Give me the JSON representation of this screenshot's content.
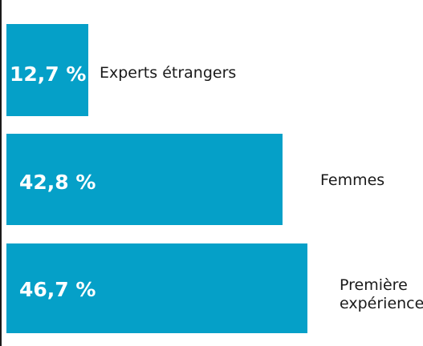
{
  "chart_data": {
    "type": "bar",
    "orientation": "horizontal",
    "categories": [
      "Experts étrangers",
      "Femmes",
      "Première expérience"
    ],
    "category_lines": [
      [
        "Experts étrangers"
      ],
      [
        "Femmes"
      ],
      [
        "Première",
        "expérience"
      ]
    ],
    "values": [
      12.7,
      42.8,
      46.7
    ],
    "value_labels": [
      "12,7 %",
      "42,8 %",
      "46,7 %"
    ],
    "unit": "%",
    "bar_color": "#05a0c8",
    "value_label_color": "#ffffff",
    "axis_color": "#1a1a1a",
    "xlim": [
      0,
      50
    ],
    "grid": false,
    "legend": "none"
  }
}
